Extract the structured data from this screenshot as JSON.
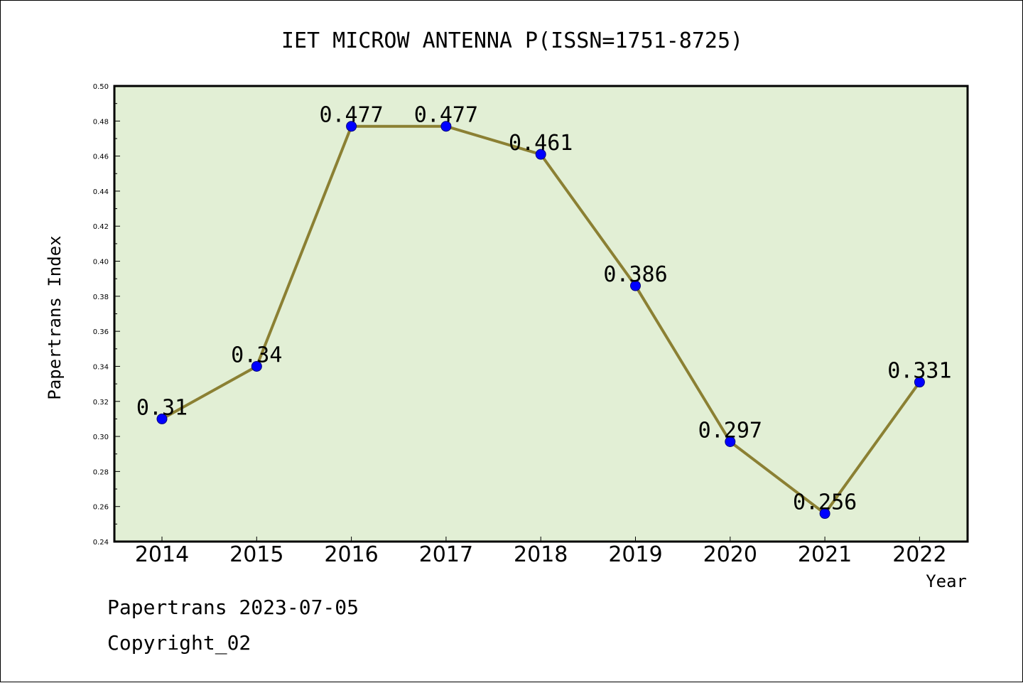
{
  "chart_data": {
    "type": "line",
    "title": "IET MICROW ANTENNA P(ISSN=1751-8725)",
    "xlabel": "Year",
    "ylabel": "Papertrans Index",
    "x": [
      "2014",
      "2015",
      "2016",
      "2017",
      "2018",
      "2019",
      "2020",
      "2021",
      "2022"
    ],
    "series": [
      {
        "values": [
          0.31,
          0.34,
          0.477,
          0.477,
          0.461,
          0.386,
          0.297,
          0.256,
          0.331
        ],
        "data_labels": [
          "0.31",
          "0.34",
          "0.477",
          "0.477",
          "0.461",
          "0.386",
          "0.297",
          "0.256",
          "0.331"
        ]
      }
    ],
    "ylim": [
      0.24,
      0.5
    ],
    "yticks": [
      "0.24",
      "0.26",
      "0.28",
      "0.30",
      "0.32",
      "0.34",
      "0.36",
      "0.38",
      "0.40",
      "0.42",
      "0.44",
      "0.46",
      "0.48",
      "0.50"
    ],
    "grid": false,
    "colors": {
      "plot_background": "#e2efd5",
      "line": "#8b8033",
      "marker": "#0000ff",
      "marker_edge": "#000080"
    }
  },
  "footer": {
    "line1": "Papertrans 2023-07-05",
    "line2": "Copyright_02"
  }
}
